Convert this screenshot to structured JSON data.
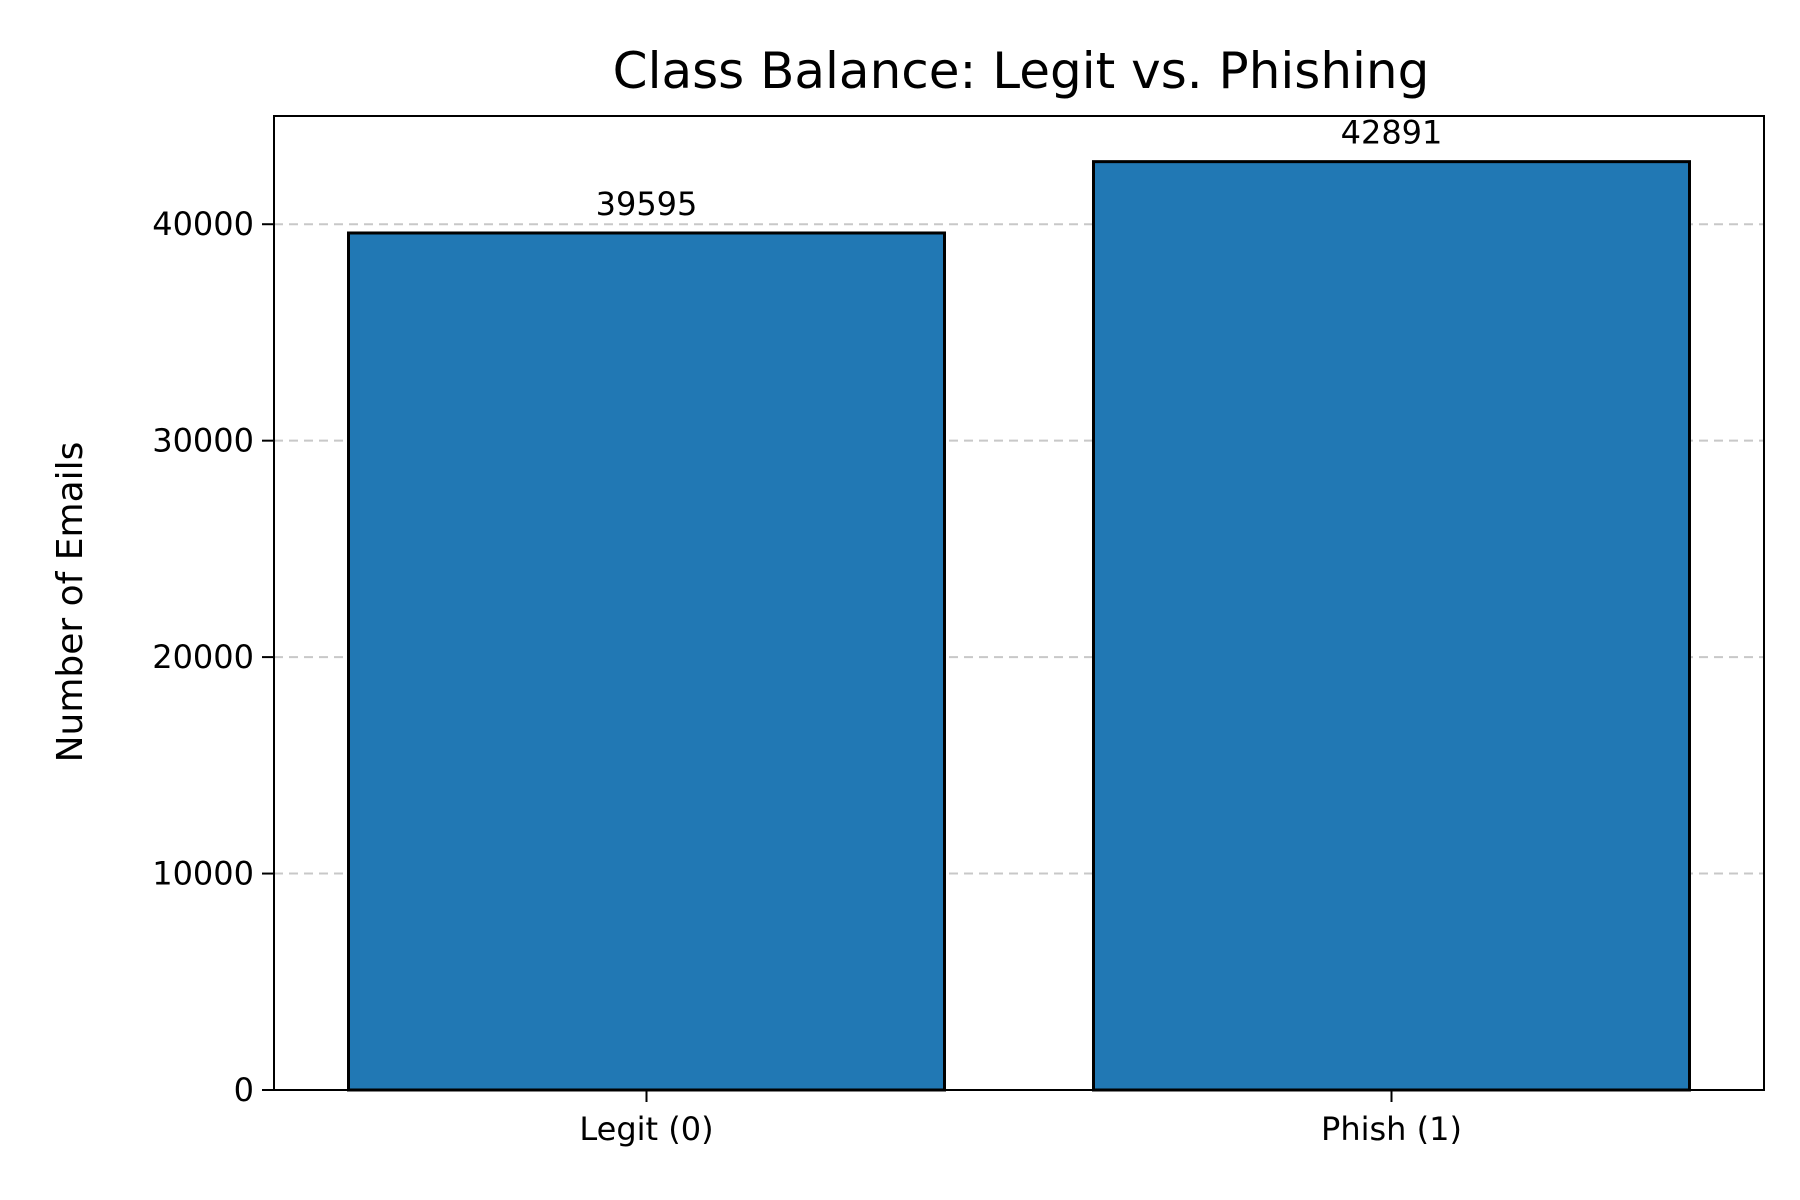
{
  "chart_data": {
    "type": "bar",
    "title": "Class Balance: Legit vs. Phishing",
    "xlabel": "",
    "ylabel": "Number of Emails",
    "categories": [
      "Legit (0)",
      "Phish (1)"
    ],
    "values": [
      39595,
      42891
    ],
    "data_labels": [
      "39595",
      "42891"
    ],
    "ylim": [
      0,
      45000
    ],
    "yticks": [
      0,
      10000,
      20000,
      30000,
      40000
    ],
    "ytick_labels": [
      "0",
      "10000",
      "20000",
      "30000",
      "40000"
    ],
    "grid": "y-dashed",
    "legend": "none",
    "bar_color": "#2178b4",
    "edge_color": "#000000"
  }
}
